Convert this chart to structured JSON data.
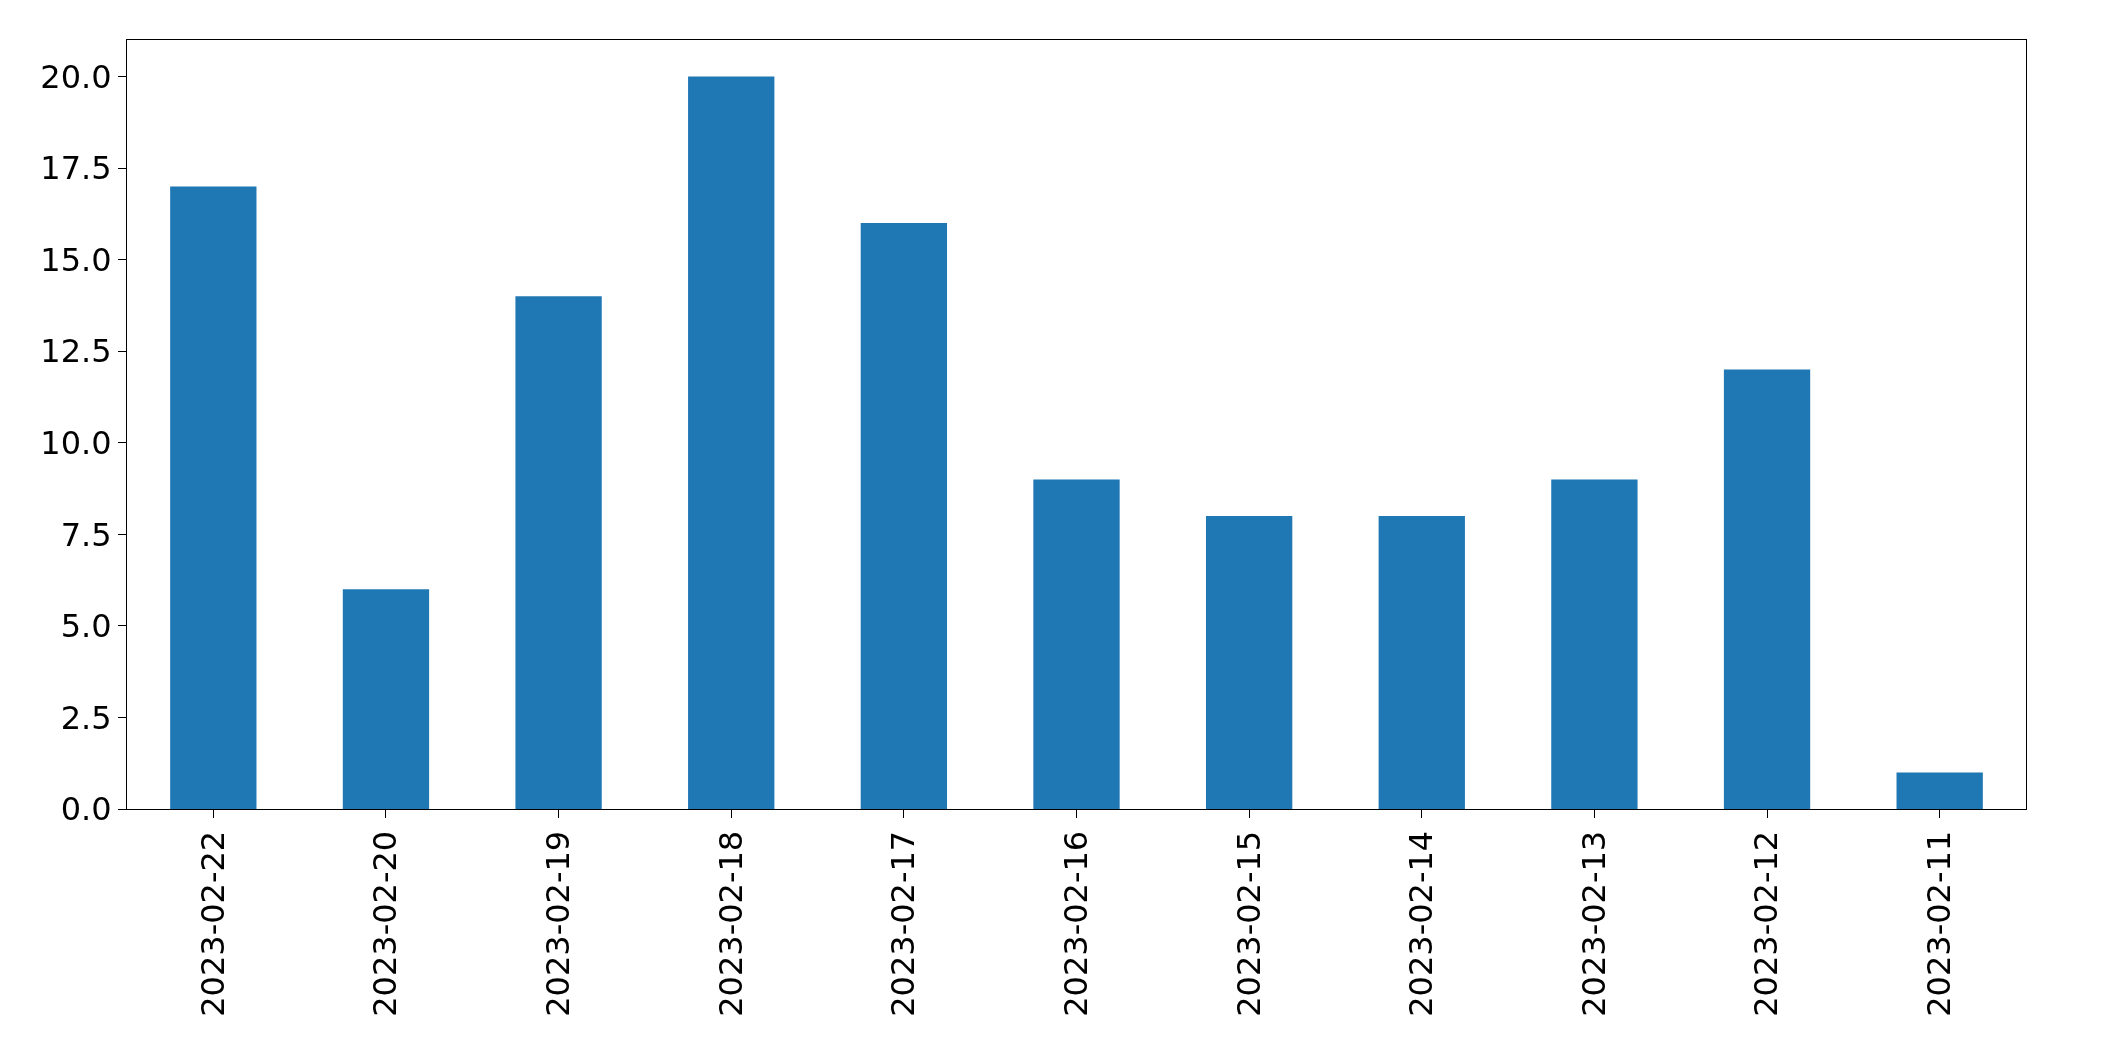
{
  "chart_data": {
    "type": "bar",
    "categories": [
      "2023-02-22",
      "2023-02-20",
      "2023-02-19",
      "2023-02-18",
      "2023-02-17",
      "2023-02-16",
      "2023-02-15",
      "2023-02-14",
      "2023-02-13",
      "2023-02-12",
      "2023-02-11"
    ],
    "values": [
      17,
      6,
      14,
      20,
      16,
      9,
      8,
      8,
      9,
      12,
      1
    ],
    "color": "#1f77b4",
    "ylim": [
      0,
      21
    ],
    "yticks": [
      {
        "value": 0,
        "label": "0.0"
      },
      {
        "value": 2.5,
        "label": "2.5"
      },
      {
        "value": 5,
        "label": "5.0"
      },
      {
        "value": 7.5,
        "label": "7.5"
      },
      {
        "value": 10,
        "label": "10.0"
      },
      {
        "value": 12.5,
        "label": "12.5"
      },
      {
        "value": 15,
        "label": "15.0"
      },
      {
        "value": 17.5,
        "label": "17.5"
      },
      {
        "value": 20,
        "label": "20.0"
      }
    ]
  }
}
